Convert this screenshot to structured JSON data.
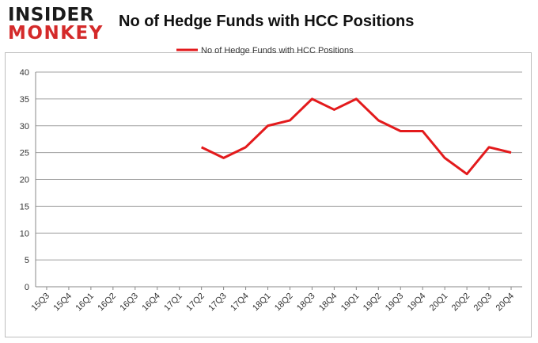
{
  "brand": {
    "line1": "INSIDER",
    "line2": "MONKEY"
  },
  "colors": {
    "series": "#e31a1c",
    "grid": "#a0a0a0",
    "brand_red": "#d42a2a"
  },
  "chart_data": {
    "type": "line",
    "title": "No of Hedge Funds with HCC Positions",
    "xlabel": "",
    "ylabel": "",
    "ylim": [
      0,
      40
    ],
    "yticks": [
      0,
      5,
      10,
      15,
      20,
      25,
      30,
      35,
      40
    ],
    "grid": "horizontal",
    "legend_placement": "top-center",
    "categories": [
      "15Q3",
      "15Q4",
      "16Q1",
      "16Q2",
      "16Q3",
      "16Q4",
      "17Q1",
      "17Q2",
      "17Q3",
      "17Q4",
      "18Q1",
      "18Q2",
      "18Q3",
      "18Q4",
      "19Q1",
      "19Q2",
      "19Q3",
      "19Q4",
      "20Q1",
      "20Q2",
      "20Q3",
      "20Q4"
    ],
    "series": [
      {
        "name": "No of Hedge Funds with HCC Positions",
        "values": [
          null,
          null,
          null,
          null,
          null,
          null,
          null,
          26,
          24,
          26,
          30,
          31,
          35,
          33,
          35,
          31,
          29,
          29,
          24,
          21,
          26,
          25
        ]
      }
    ]
  }
}
